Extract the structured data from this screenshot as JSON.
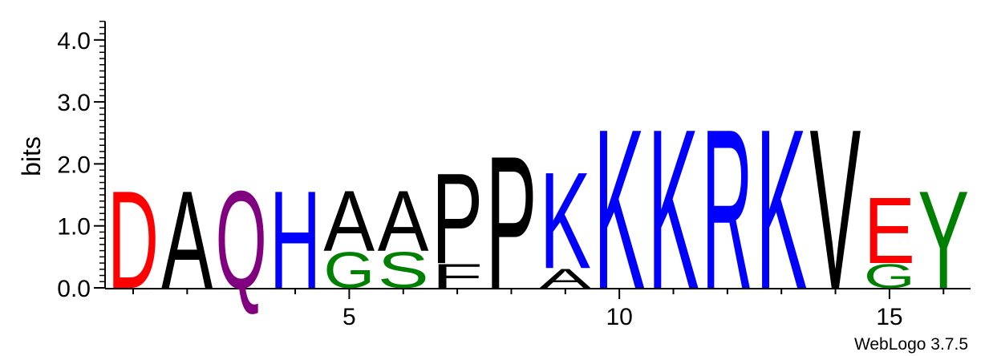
{
  "chart_data": {
    "type": "sequence-logo",
    "ylabel": "bits",
    "ylim": [
      0,
      4.3
    ],
    "yticks": [
      {
        "value": 0.0,
        "label": "0.0"
      },
      {
        "value": 1.0,
        "label": "1.0"
      },
      {
        "value": 2.0,
        "label": "2.0"
      },
      {
        "value": 3.0,
        "label": "3.0"
      },
      {
        "value": 4.0,
        "label": "4.0"
      }
    ],
    "xlim": [
      0,
      16
    ],
    "xticks": [
      {
        "value": 5,
        "label": "5"
      },
      {
        "value": 10,
        "label": "10"
      },
      {
        "value": 15,
        "label": "15"
      }
    ],
    "columns": [
      {
        "pos": 1,
        "letters": [
          {
            "char": "D",
            "bits": 1.62,
            "color": "#ff0000"
          }
        ]
      },
      {
        "pos": 2,
        "letters": [
          {
            "char": "A",
            "bits": 1.62,
            "color": "#000000"
          }
        ]
      },
      {
        "pos": 3,
        "letters": [
          {
            "char": "Q",
            "bits": 1.62,
            "color": "#800080"
          }
        ]
      },
      {
        "pos": 4,
        "letters": [
          {
            "char": "H",
            "bits": 1.62,
            "color": "#0000ff"
          }
        ]
      },
      {
        "pos": 5,
        "letters": [
          {
            "char": "G",
            "bits": 0.6,
            "color": "#008000"
          },
          {
            "char": "A",
            "bits": 1.0,
            "color": "#000000"
          }
        ]
      },
      {
        "pos": 6,
        "letters": [
          {
            "char": "S",
            "bits": 0.6,
            "color": "#008000"
          },
          {
            "char": "A",
            "bits": 1.0,
            "color": "#000000"
          }
        ]
      },
      {
        "pos": 7,
        "letters": [
          {
            "char": "F",
            "bits": 0.4,
            "color": "#000000"
          },
          {
            "char": "P",
            "bits": 1.5,
            "color": "#000000"
          }
        ]
      },
      {
        "pos": 8,
        "letters": [
          {
            "char": "P",
            "bits": 2.2,
            "color": "#000000"
          }
        ]
      },
      {
        "pos": 9,
        "letters": [
          {
            "char": "A",
            "bits": 0.32,
            "color": "#000000"
          },
          {
            "char": "K",
            "bits": 1.6,
            "color": "#0000ff"
          }
        ]
      },
      {
        "pos": 10,
        "letters": [
          {
            "char": "K",
            "bits": 2.65,
            "color": "#0000ff"
          }
        ]
      },
      {
        "pos": 11,
        "letters": [
          {
            "char": "K",
            "bits": 2.65,
            "color": "#0000ff"
          }
        ]
      },
      {
        "pos": 12,
        "letters": [
          {
            "char": "R",
            "bits": 2.65,
            "color": "#0000ff"
          }
        ]
      },
      {
        "pos": 13,
        "letters": [
          {
            "char": "K",
            "bits": 2.65,
            "color": "#0000ff"
          }
        ]
      },
      {
        "pos": 14,
        "letters": [
          {
            "char": "V",
            "bits": 2.65,
            "color": "#000000"
          }
        ]
      },
      {
        "pos": 15,
        "letters": [
          {
            "char": "G",
            "bits": 0.4,
            "color": "#008000"
          },
          {
            "char": "E",
            "bits": 1.1,
            "color": "#ff0000"
          }
        ]
      },
      {
        "pos": 16,
        "letters": [
          {
            "char": "Y",
            "bits": 1.62,
            "color": "#008000"
          }
        ]
      }
    ]
  },
  "footer": {
    "credit": "WebLogo 3.7.5"
  }
}
